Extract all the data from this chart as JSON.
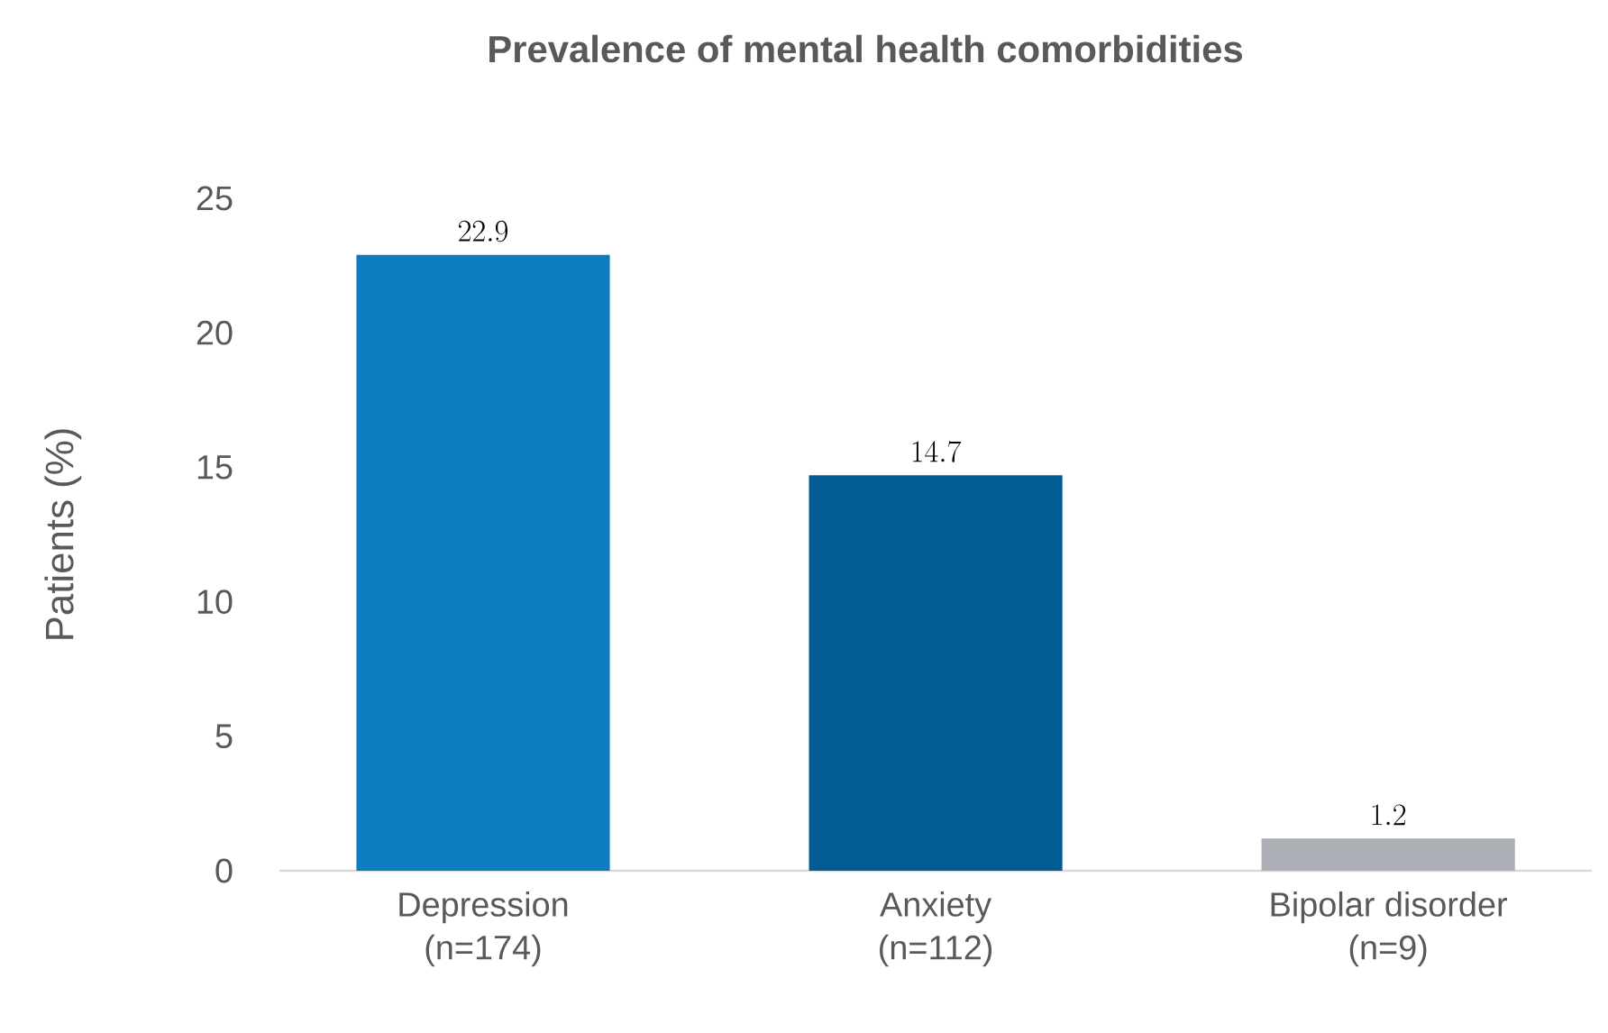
{
  "chart_data": {
    "type": "bar",
    "title": "Prevalence of mental health comorbidities",
    "ylabel": "Patients (%)",
    "categories": [
      "Depression\n(n=174)",
      "Anxiety\n(n=112)",
      "Bipolar disorder\n(n=9)"
    ],
    "values": [
      22.9,
      14.7,
      1.2
    ],
    "colors": [
      "#0e7cc1",
      "#025c93",
      "#acb0b6"
    ],
    "ylim": [
      0,
      25
    ],
    "yticks": [
      0,
      5,
      10,
      15,
      20,
      25
    ],
    "grid": false,
    "data_labels": true
  }
}
